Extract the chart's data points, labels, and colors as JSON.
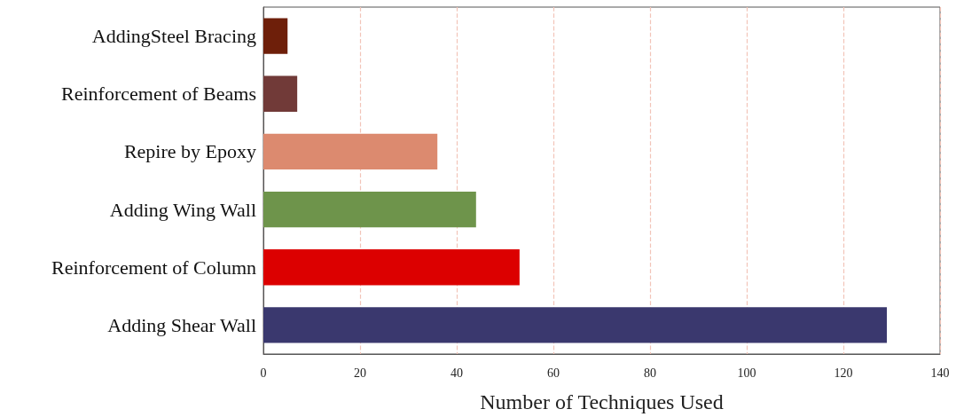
{
  "chart_data": {
    "type": "bar",
    "orientation": "horizontal",
    "xlabel": "Number of Techniques Used",
    "categories": [
      "AddingSteel Bracing",
      "Reinforcement of Beams",
      "Repire by Epoxy",
      "Adding Wing Wall",
      "Reinforcement of Column",
      "Adding Shear Wall"
    ],
    "values": [
      5,
      7,
      36,
      44,
      53,
      129
    ],
    "colors": [
      "#6e1f0a",
      "#713a38",
      "#dc8a6f",
      "#6e944b",
      "#dc0000",
      "#3a386e"
    ],
    "xlim": [
      0,
      140
    ],
    "xticks": [
      0,
      20,
      40,
      60,
      80,
      100,
      120,
      140
    ],
    "grid": "x"
  }
}
